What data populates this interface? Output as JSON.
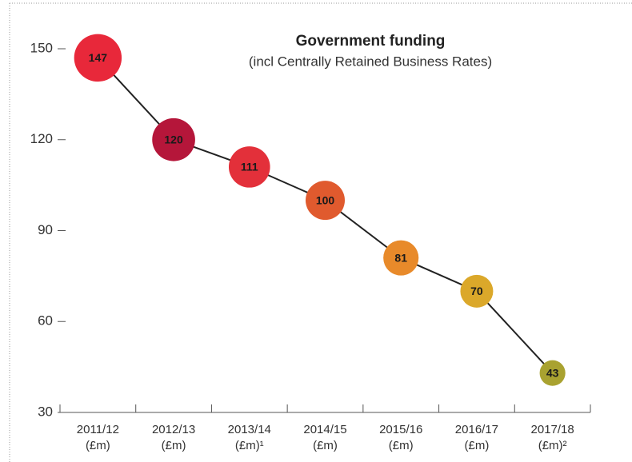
{
  "chart_data": {
    "type": "bubble-line",
    "title": "Government funding",
    "subtitle": "(incl Centrally Retained Business Rates)",
    "categories": [
      [
        "2011/12",
        "(£m)"
      ],
      [
        "2012/13",
        "(£m)"
      ],
      [
        "2013/14",
        "(£m)¹"
      ],
      [
        "2014/15",
        "(£m)"
      ],
      [
        "2015/16",
        "(£m)"
      ],
      [
        "2016/17",
        "(£m)"
      ],
      [
        "2017/18",
        "(£m)²"
      ]
    ],
    "values": [
      147,
      120,
      111,
      100,
      81,
      70,
      43
    ],
    "colors": [
      "#e8283a",
      "#b5163a",
      "#e3303a",
      "#e05a2e",
      "#e88a2a",
      "#dba82a",
      "#a9a230"
    ],
    "line_color": "#222222",
    "ylim": [
      30,
      150
    ],
    "yticks": [
      30,
      60,
      90,
      120,
      150
    ]
  }
}
